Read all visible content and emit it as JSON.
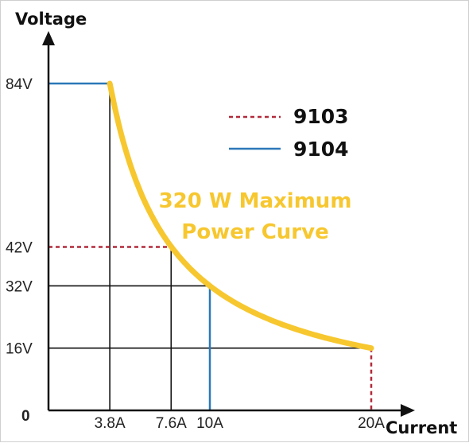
{
  "chart_data": {
    "type": "line",
    "xlabel": "Current",
    "ylabel": "Voltage",
    "origin_label": "0",
    "xlim": [
      0,
      22
    ],
    "ylim": [
      0,
      92
    ],
    "x_ticks": [
      {
        "value": 3.8,
        "label": "3.8A"
      },
      {
        "value": 7.6,
        "label": "7.6A"
      },
      {
        "value": 10,
        "label": "10A"
      },
      {
        "value": 20,
        "label": "20A"
      }
    ],
    "y_ticks": [
      {
        "value": 84,
        "label": "84V"
      },
      {
        "value": 42,
        "label": "42V"
      },
      {
        "value": 32,
        "label": "32V"
      },
      {
        "value": 16,
        "label": "16V"
      }
    ],
    "series": [
      {
        "name": "9103",
        "style": "dashed",
        "color": "#b22a3a",
        "segments": [
          [
            [
              0,
              42
            ],
            [
              7.6,
              42
            ]
          ],
          [
            [
              20,
              16
            ],
            [
              20,
              0
            ]
          ]
        ]
      },
      {
        "name": "9104",
        "style": "solid",
        "color": "#2b78b8",
        "segments": [
          [
            [
              0,
              84
            ],
            [
              3.8,
              84
            ]
          ],
          [
            [
              10,
              32
            ],
            [
              10,
              0
            ]
          ]
        ]
      }
    ],
    "reference_lines": [
      [
        [
          3.8,
          84
        ],
        [
          3.8,
          0
        ]
      ],
      [
        [
          7.6,
          42
        ],
        [
          7.6,
          0
        ]
      ],
      [
        [
          0,
          32
        ],
        [
          10,
          32
        ]
      ],
      [
        [
          0,
          16
        ],
        [
          20,
          16
        ]
      ]
    ],
    "curve": {
      "power_watts": 320,
      "x_start": 3.8,
      "x_end": 20,
      "color": "#f7c72f"
    },
    "annotation_lines": [
      "320 W Maximum",
      "Power Curve"
    ],
    "legend_position": "top-right"
  }
}
